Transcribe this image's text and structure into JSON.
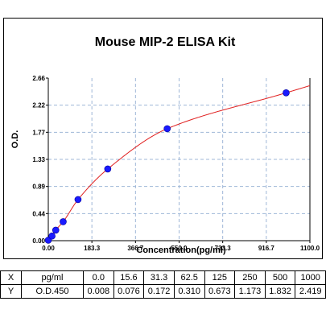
{
  "chart_data": {
    "type": "scatter",
    "title": "Mouse MIP-2 ELISA Kit",
    "xlabel": "Concentration(pg/ml)",
    "ylabel": "O.D.",
    "xlim": [
      0,
      1100
    ],
    "ylim": [
      0,
      2.66
    ],
    "x_ticks": [
      "0.00",
      "183.3",
      "366.7",
      "550.0",
      "733.3",
      "916.7",
      "1100.0"
    ],
    "y_ticks": [
      "0.00",
      "0.44",
      "0.89",
      "1.33",
      "1.77",
      "2.22",
      "2.66"
    ],
    "grid": true,
    "point_color": "#1a1aff",
    "curve_color": "#e02020",
    "grid_color": "#9fb7d7",
    "series": [
      {
        "type": "scatter",
        "x": [
          0.0,
          15.6,
          31.3,
          62.5,
          125,
          250,
          500,
          1000
        ],
        "y": [
          0.008,
          0.076,
          0.172,
          0.31,
          0.673,
          1.173,
          1.832,
          2.419
        ]
      }
    ]
  },
  "table": {
    "rows": [
      {
        "key": "X",
        "label": "pg/ml",
        "values": [
          "0.0",
          "15.6",
          "31.3",
          "62.5",
          "125",
          "250",
          "500",
          "1000"
        ]
      },
      {
        "key": "Y",
        "label": "O.D.450",
        "values": [
          "0.008",
          "0.076",
          "0.172",
          "0.310",
          "0.673",
          "1.173",
          "1.832",
          "2.419"
        ]
      }
    ]
  }
}
